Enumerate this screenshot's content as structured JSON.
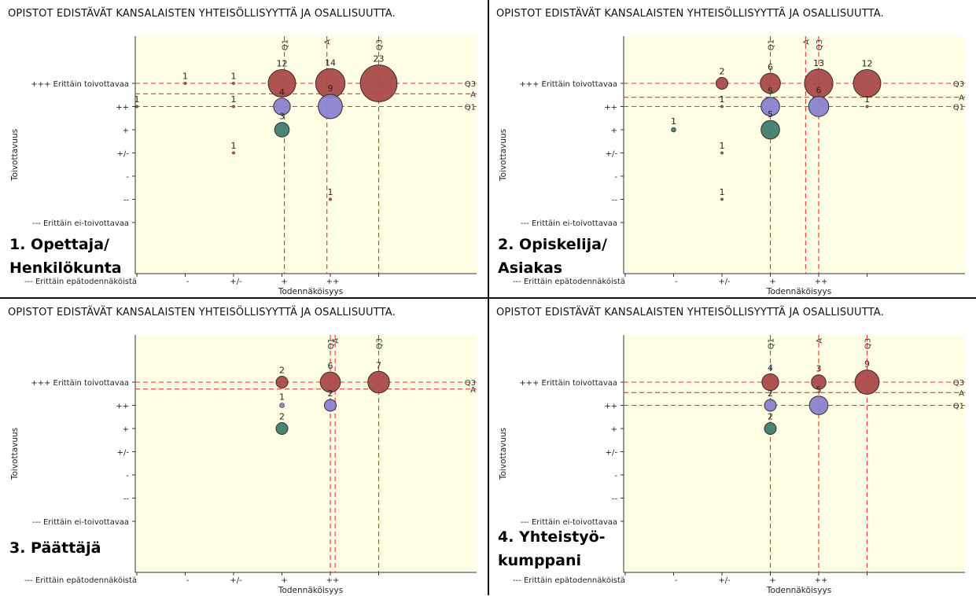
{
  "charts": [
    {
      "title": "OPISTOT EDISTÄVÄT KANSALAISTEN YHTEISÖLLISYYTTÄ JA OSALLISUUTTA.",
      "panel_label_line1": "1. Opettaja/",
      "panel_label_line2": "Henkilökunta"
    },
    {
      "title": "OPISTOT EDISTÄVÄT KANSALAISTEN YHTEISÖLLISYYTTÄ JA OSALLISUUTTA.",
      "panel_label_line1": "2. Opiskelija/",
      "panel_label_line2": "Asiakas"
    },
    {
      "title": "OPISTOT EDISTÄVÄT KANSALAISTEN YHTEISÖLLISYYTTÄ JA OSALLISUUTTA.",
      "panel_label_line1": "3. Päättäjä",
      "panel_label_line2": ""
    },
    {
      "title": "OPISTOT EDISTÄVÄT KANSALAISTEN YHTEISÖLLISYYTTÄ JA OSALLISUUTTA.",
      "panel_label_line1": "4. Yhteistyö-",
      "panel_label_line2": "kumppani"
    }
  ],
  "colors": {
    "plot_bg": "#fefee4",
    "guide_line": "#e8362f",
    "bubble_top": "#a94a4a",
    "bubble_mid": "#8a82cf",
    "bubble_low": "#3f7d6e",
    "bubble_other": "#b65a4e"
  },
  "chart_data": [
    {
      "type": "scatter",
      "title": "OPISTOT EDISTÄVÄT KANSALAISTEN YHTEISÖLLISYYTTÄ JA OSALLISUUTTA.",
      "xlabel": "Todennäköisyys",
      "ylabel": "Toivottavuus",
      "x_ticks": [
        "--- Erittäin epätodennäköistä",
        "-",
        "+/-",
        "+",
        "++",
        "+++"
      ],
      "y_ticks": [
        "+++ Erittäin toivottavaa",
        "++",
        "+",
        "+/-",
        "-",
        "--",
        "--- Erittäin ei-toivottavaa"
      ],
      "x_ticks_shown": [
        true,
        true,
        true,
        true,
        true,
        false
      ],
      "points": [
        {
          "x": 1,
          "y": 3,
          "n": 1,
          "color": "other"
        },
        {
          "x": 2,
          "y": 3,
          "n": 1,
          "color": "other"
        },
        {
          "x": 3,
          "y": 3,
          "n": 12,
          "color": "top"
        },
        {
          "x": 4,
          "y": 3,
          "n": 14,
          "color": "top"
        },
        {
          "x": 5,
          "y": 3,
          "n": 23,
          "color": "top"
        },
        {
          "x": 0,
          "y": 2,
          "n": 1,
          "color": "other"
        },
        {
          "x": 2,
          "y": 2,
          "n": 1,
          "color": "other"
        },
        {
          "x": 3,
          "y": 2,
          "n": 4,
          "color": "mid"
        },
        {
          "x": 4,
          "y": 2,
          "n": 9,
          "color": "mid"
        },
        {
          "x": 3,
          "y": 1,
          "n": 3,
          "color": "low"
        },
        {
          "x": 2,
          "y": 0,
          "n": 1,
          "color": "other"
        },
        {
          "x": 4,
          "y": -2,
          "n": 1,
          "color": "other"
        }
      ],
      "v_lines": [
        {
          "label": "Q1",
          "x": 3.05
        },
        {
          "label": "A",
          "x": 3.93
        },
        {
          "label": "Q3",
          "x": 5.0
        }
      ],
      "h_lines": [
        {
          "label": "Q3",
          "y": 3.0
        },
        {
          "label": "A",
          "y": 2.55
        },
        {
          "label": "Q1",
          "y": 2.0
        }
      ]
    },
    {
      "type": "scatter",
      "title": "OPISTOT EDISTÄVÄT KANSALAISTEN YHTEISÖLLISYYTTÄ JA OSALLISUUTTA.",
      "xlabel": "Todennäköisyys",
      "ylabel": "Toivottavuus",
      "x_ticks": [
        "--- Erittäin epätodennäköistä",
        "-",
        "+/-",
        "+",
        "++",
        "+++"
      ],
      "y_ticks": [
        "+++ Erittäin toivottavaa",
        "++",
        "+",
        "+/-",
        "-",
        "--",
        "--- Erittäin ei-toivottavaa"
      ],
      "x_ticks_shown": [
        true,
        true,
        true,
        true,
        true,
        false
      ],
      "points": [
        {
          "x": 2,
          "y": 3,
          "n": 2,
          "color": "top"
        },
        {
          "x": 3,
          "y": 3,
          "n": 6,
          "color": "top"
        },
        {
          "x": 4,
          "y": 3,
          "n": 13,
          "color": "top"
        },
        {
          "x": 5,
          "y": 3,
          "n": 12,
          "color": "top"
        },
        {
          "x": 2,
          "y": 2,
          "n": 1,
          "color": "other"
        },
        {
          "x": 3,
          "y": 2,
          "n": 5,
          "color": "mid"
        },
        {
          "x": 4,
          "y": 2,
          "n": 6,
          "color": "mid"
        },
        {
          "x": 5,
          "y": 2,
          "n": 1,
          "color": "other"
        },
        {
          "x": 1,
          "y": 1,
          "n": 1,
          "color": "low"
        },
        {
          "x": 3,
          "y": 1,
          "n": 5,
          "color": "low"
        },
        {
          "x": 2,
          "y": 0,
          "n": 1,
          "color": "other"
        },
        {
          "x": 2,
          "y": -2,
          "n": 1,
          "color": "other"
        }
      ],
      "v_lines": [
        {
          "label": "Q1",
          "x": 3.0
        },
        {
          "label": "A",
          "x": 3.73
        },
        {
          "label": "Q3",
          "x": 4.0
        }
      ],
      "h_lines": [
        {
          "label": "Q3",
          "y": 3.0
        },
        {
          "label": "A",
          "y": 2.4
        },
        {
          "label": "Q1",
          "y": 2.0
        }
      ]
    },
    {
      "type": "scatter",
      "title": "OPISTOT EDISTÄVÄT KANSALAISTEN YHTEISÖLLISYYTTÄ JA OSALLISUUTTA.",
      "xlabel": "Todennäköisyys",
      "ylabel": "Toivottavuus",
      "x_ticks": [
        "--- Erittäin epätodennäköistä",
        "-",
        "+/-",
        "+",
        "++",
        "+++"
      ],
      "y_ticks": [
        "+++ Erittäin toivottavaa",
        "++",
        "+",
        "+/-",
        "-",
        "--",
        "--- Erittäin ei-toivottavaa"
      ],
      "x_ticks_shown": [
        true,
        true,
        true,
        true,
        true,
        false
      ],
      "points": [
        {
          "x": 3,
          "y": 3,
          "n": 2,
          "color": "top"
        },
        {
          "x": 4,
          "y": 3,
          "n": 6,
          "color": "top"
        },
        {
          "x": 5,
          "y": 3,
          "n": 7,
          "color": "top"
        },
        {
          "x": 3,
          "y": 2,
          "n": 1,
          "color": "mid"
        },
        {
          "x": 4,
          "y": 2,
          "n": 2,
          "color": "mid"
        },
        {
          "x": 3,
          "y": 1,
          "n": 2,
          "color": "low"
        }
      ],
      "v_lines": [
        {
          "label": "Q1",
          "x": 4.0
        },
        {
          "label": "A",
          "x": 4.1
        },
        {
          "label": "Q3",
          "x": 5.0
        }
      ],
      "h_lines": [
        {
          "label": "Q3",
          "y": 3.0
        },
        {
          "label": "A",
          "y": 2.7
        }
      ]
    },
    {
      "type": "scatter",
      "title": "OPISTOT EDISTÄVÄT KANSALAISTEN YHTEISÖLLISYYTTÄ JA OSALLISUUTTA.",
      "xlabel": "Todennäköisyys",
      "ylabel": "Toivottavuus",
      "x_ticks": [
        "--- Erittäin epätodennäköistä",
        "-",
        "+/-",
        "+",
        "++",
        "+++"
      ],
      "y_ticks": [
        "+++ Erittäin toivottavaa",
        "++",
        "+",
        "+/-",
        "-",
        "--",
        "--- Erittäin ei-toivottavaa"
      ],
      "x_ticks_shown": [
        true,
        true,
        true,
        true,
        true,
        false
      ],
      "points": [
        {
          "x": 3,
          "y": 3,
          "n": 4,
          "color": "top"
        },
        {
          "x": 4,
          "y": 3,
          "n": 3,
          "color": "top"
        },
        {
          "x": 5,
          "y": 3,
          "n": 9,
          "color": "top"
        },
        {
          "x": 3,
          "y": 2,
          "n": 2,
          "color": "mid"
        },
        {
          "x": 4,
          "y": 2,
          "n": 5,
          "color": "mid"
        },
        {
          "x": 3,
          "y": 1,
          "n": 2,
          "color": "low"
        }
      ],
      "v_lines": [
        {
          "label": "Q1",
          "x": 3.0
        },
        {
          "label": "A",
          "x": 4.0
        },
        {
          "label": "Q3",
          "x": 5.0
        }
      ],
      "h_lines": [
        {
          "label": "Q3",
          "y": 3.0
        },
        {
          "label": "A",
          "y": 2.55
        },
        {
          "label": "Q1",
          "y": 2.0
        }
      ]
    }
  ]
}
